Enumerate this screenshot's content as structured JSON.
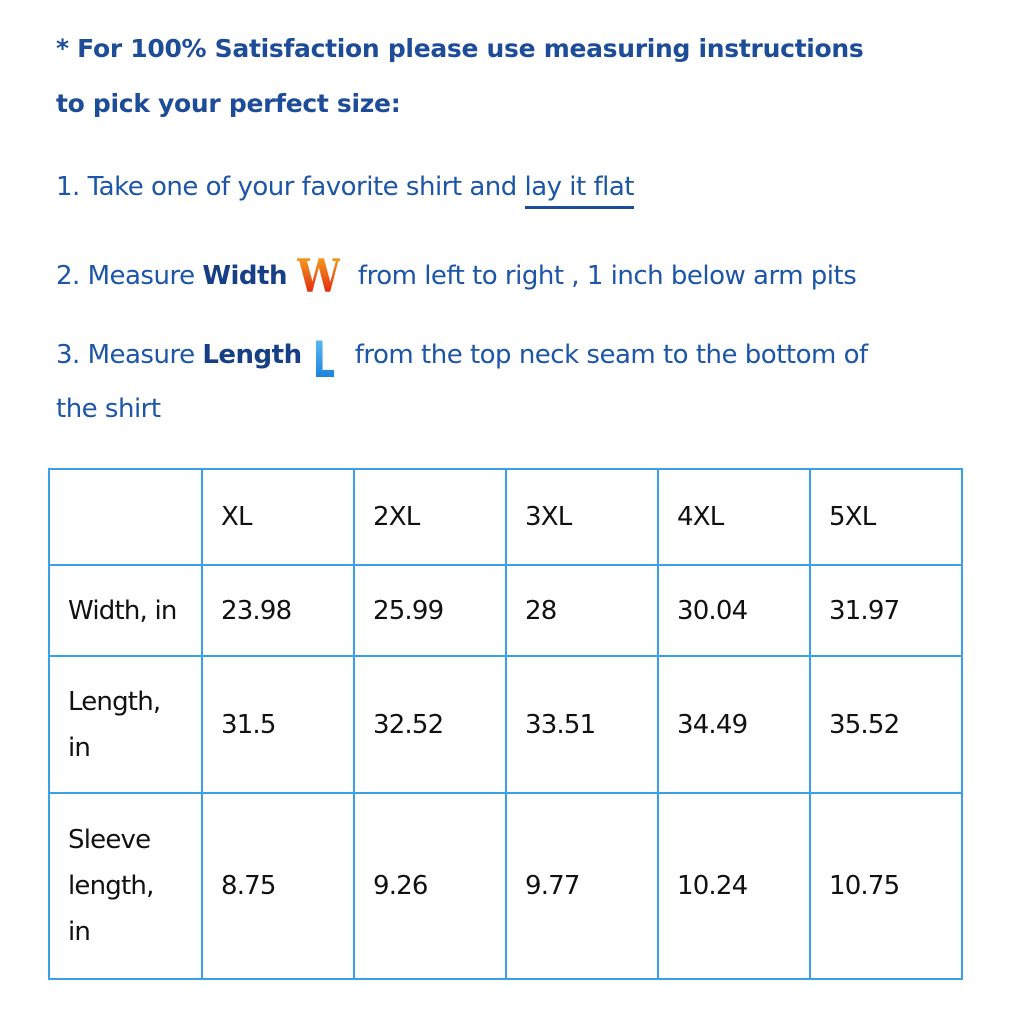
{
  "heading": {
    "line1": "* For 100% Satisfaction please use measuring instructions",
    "line2": "to pick your perfect size:"
  },
  "steps": {
    "s1_text": "1. Take one of your favorite shirt and ",
    "s1_link": "lay it flat",
    "s2_pre": "2. Measure ",
    "s2_bold": "Width",
    "s2_icon": "W",
    "s2_post": " from left to right , 1 inch below arm pits",
    "s3_pre": "3. Measure ",
    "s3_bold": "Length",
    "s3_icon": "L",
    "s3_post": " from the top neck seam to the bottom of",
    "s3_cont": "the shirt"
  },
  "table": {
    "headers": [
      "",
      "XL",
      "2XL",
      "3XL",
      "4XL",
      "5XL"
    ],
    "rows": [
      {
        "label": "Width, in",
        "values": [
          "23.98",
          "25.99",
          "28",
          "30.04",
          "31.97"
        ]
      },
      {
        "label": "Length, in",
        "values": [
          "31.5",
          "32.52",
          "33.51",
          "34.49",
          "35.52"
        ]
      },
      {
        "label": "Sleeve length, in",
        "values": [
          "8.75",
          "9.26",
          "9.77",
          "10.24",
          "10.75"
        ]
      }
    ]
  },
  "colors": {
    "text": "#1d4c98",
    "border": "#3aa0e8"
  }
}
